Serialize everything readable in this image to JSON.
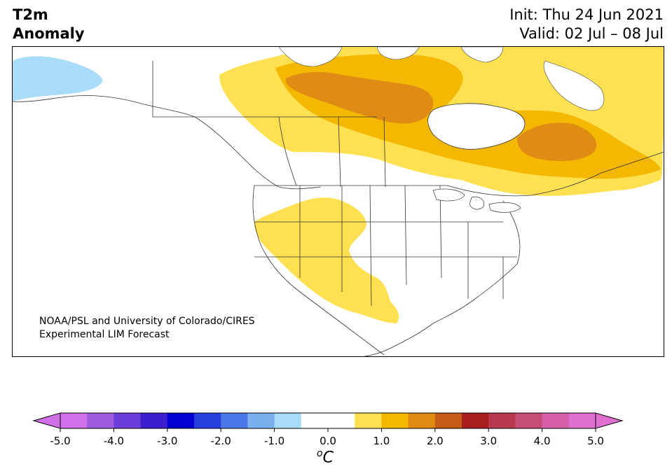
{
  "title": {
    "variable": "T2m",
    "subtitle": "Anomaly",
    "init": "Init: Thu 24 Jun 2021",
    "valid": "Valid: 02 Jul – 08 Jul"
  },
  "credit": {
    "line1": "NOAA/PSL and University of Colorado/CIRES",
    "line2": "Experimental LIM Forecast"
  },
  "map": {
    "region": "North America",
    "shading": [
      {
        "area": "Alaska (west)",
        "anomaly_bin": "-1.0 to -0.5",
        "color": "#a8dcfa"
      },
      {
        "area": "Northern Canada / Nunavut",
        "anomaly_bin": "0.5 to 1.5",
        "color": "#ffe050"
      },
      {
        "area": "Central Canada / Hudson Bay west",
        "anomaly_bin": "1.0 to 2.0",
        "color": "#f4b800"
      },
      {
        "area": "Manitoba core",
        "anomaly_bin": "1.5 to 2.0",
        "color": "#e08c14"
      },
      {
        "area": "Quebec core",
        "anomaly_bin": "1.5 to 2.0",
        "color": "#e08c14"
      },
      {
        "area": "US West / Southwest / Texas",
        "anomaly_bin": "0.5 to 1.0",
        "color": "#ffe050"
      }
    ]
  },
  "colorbar": {
    "unit_base": "C",
    "unit_prefix": "o",
    "ticks": [
      "-5.0",
      "-4.0",
      "-3.0",
      "-2.0",
      "-1.0",
      "0.0",
      "1.0",
      "2.0",
      "3.0",
      "4.0",
      "5.0"
    ],
    "colors": [
      "#d070e8",
      "#a05ae0",
      "#6a3ed8",
      "#3c1ed0",
      "#0000d0",
      "#2840e0",
      "#4c78e8",
      "#7ab0f0",
      "#a8dcfa",
      "#ffffff",
      "#ffffff",
      "#ffe050",
      "#f4b800",
      "#e08c14",
      "#c85a18",
      "#a81e1e",
      "#b83850",
      "#c84c78",
      "#d860a8",
      "#e070d0"
    ],
    "extend_low_color": "#d070e8",
    "extend_high_color": "#e070d0"
  }
}
